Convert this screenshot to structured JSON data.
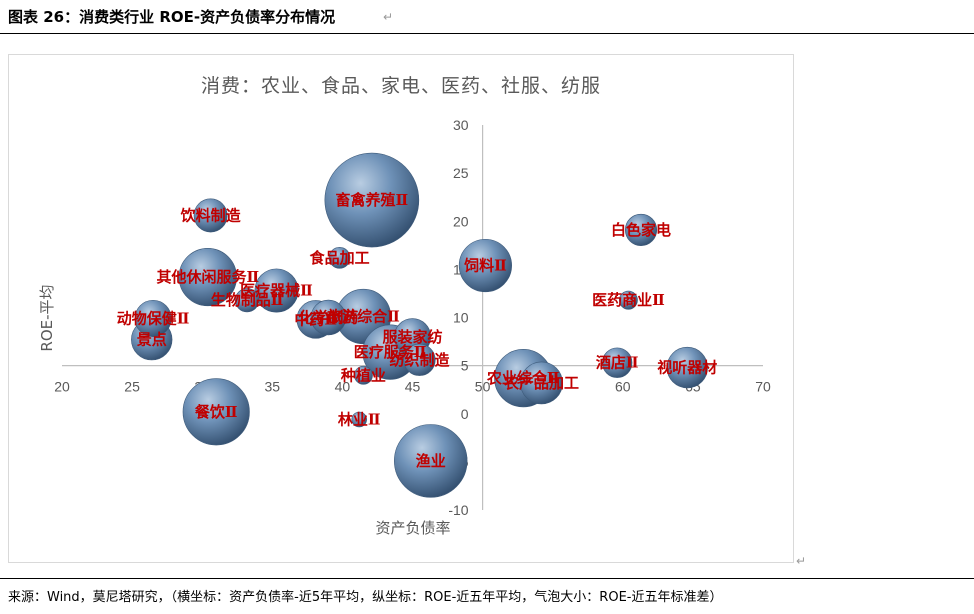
{
  "header": {
    "figure_title": "图表 26：消费类行业 ROE-资产负债率分布情况"
  },
  "footer": {
    "source": "来源：Wind，莫尼塔研究，（横坐标：资产负债率-近5年平均，纵坐标：ROE-近五年平均，气泡大小：ROE-近五年标准差）"
  },
  "chart_data": {
    "type": "bubble",
    "title": "消费：农业、食品、家电、医药、社服、纺服",
    "xlabel": "资产负债率",
    "ylabel": "ROE-平均",
    "xlim": [
      20,
      70
    ],
    "ylim": [
      -10,
      30
    ],
    "x_ticks": [
      20,
      25,
      30,
      35,
      40,
      45,
      50,
      55,
      60,
      65,
      70
    ],
    "y_ticks": [
      -10,
      -5,
      0,
      5,
      10,
      15,
      20,
      25,
      30
    ],
    "y_axis_crosses_x_at": 50,
    "x_axis_crosses_y_at": 5,
    "grid": false,
    "bubble_color": "#5b7fa6",
    "label_color": "#c00000",
    "series": [
      {
        "name": "畜禽养殖Ⅱ",
        "x": 42.1,
        "y": 22.2,
        "size": 8.0
      },
      {
        "name": "饮料制造",
        "x": 30.6,
        "y": 20.6,
        "size": 1.0
      },
      {
        "name": "食品加工",
        "x": 39.8,
        "y": 16.2,
        "size": 0.4
      },
      {
        "name": "白色家电",
        "x": 61.3,
        "y": 19.1,
        "size": 0.9
      },
      {
        "name": "饲料Ⅱ",
        "x": 50.2,
        "y": 15.4,
        "size": 2.5
      },
      {
        "name": "其他休闲服务Ⅱ",
        "x": 30.4,
        "y": 14.2,
        "size": 3.0
      },
      {
        "name": "医疗器械Ⅱ",
        "x": 35.3,
        "y": 12.8,
        "size": 1.7
      },
      {
        "name": "生物制品Ⅱ",
        "x": 33.2,
        "y": 11.8,
        "size": 0.5
      },
      {
        "name": "医药商业Ⅱ",
        "x": 60.4,
        "y": 11.8,
        "size": 0.3
      },
      {
        "name": "化学制药",
        "x": 39.0,
        "y": 10.0,
        "size": 1.1
      },
      {
        "name": "中药Ⅱ",
        "x": 38.1,
        "y": 9.8,
        "size": 1.3
      },
      {
        "name": "旅游综合Ⅱ",
        "x": 41.5,
        "y": 10.1,
        "size": 2.7
      },
      {
        "name": "动物保健Ⅱ",
        "x": 26.5,
        "y": 9.9,
        "size": 1.2
      },
      {
        "name": "景点",
        "x": 26.4,
        "y": 7.7,
        "size": 1.5
      },
      {
        "name": "服装家纺",
        "x": 45.0,
        "y": 8.0,
        "size": 1.2
      },
      {
        "name": "医疗服务Ⅱ",
        "x": 43.4,
        "y": 6.4,
        "size": 2.7
      },
      {
        "name": "纺织制造",
        "x": 45.5,
        "y": 5.6,
        "size": 0.9
      },
      {
        "name": "种植业",
        "x": 41.5,
        "y": 4.0,
        "size": 0.3
      },
      {
        "name": "酒店Ⅱ",
        "x": 59.6,
        "y": 5.3,
        "size": 0.8
      },
      {
        "name": "视听器材",
        "x": 64.6,
        "y": 4.8,
        "size": 1.5
      },
      {
        "name": "农业综合Ⅱ",
        "x": 52.9,
        "y": 3.7,
        "size": 3.0
      },
      {
        "name": "农产品加工",
        "x": 54.2,
        "y": 3.2,
        "size": 1.6
      },
      {
        "name": "餐饮Ⅱ",
        "x": 31.0,
        "y": 0.2,
        "size": 4.0
      },
      {
        "name": "林业Ⅱ",
        "x": 41.2,
        "y": -0.6,
        "size": 0.2
      },
      {
        "name": "渔业",
        "x": 46.3,
        "y": -4.9,
        "size": 4.8
      }
    ]
  }
}
